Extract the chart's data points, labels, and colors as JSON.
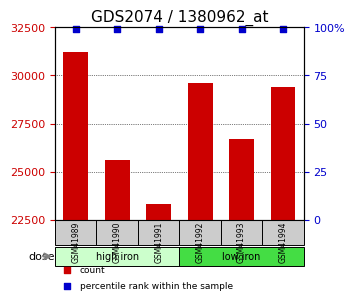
{
  "title": "GDS2074 / 1380962_at",
  "categories": [
    "GSM41989",
    "GSM41990",
    "GSM41991",
    "GSM41992",
    "GSM41993",
    "GSM41994"
  ],
  "bar_values": [
    31200,
    25600,
    23300,
    29600,
    26700,
    29400
  ],
  "percentile_values": [
    99,
    99,
    99,
    99,
    99,
    99
  ],
  "bar_color": "#cc0000",
  "percentile_color": "#0000cc",
  "ylim_left": [
    22500,
    32500
  ],
  "ylim_right": [
    0,
    100
  ],
  "yticks_left": [
    22500,
    25000,
    27500,
    30000,
    32500
  ],
  "yticks_right": [
    0,
    25,
    50,
    75,
    100
  ],
  "ytick_labels_right": [
    "0",
    "25",
    "50",
    "75",
    "100%"
  ],
  "grid_values": [
    25000,
    27500,
    30000
  ],
  "groups": [
    {
      "label": "high iron",
      "indices": [
        0,
        1,
        2
      ],
      "color": "#ccffcc"
    },
    {
      "label": "low iron",
      "indices": [
        3,
        4,
        5
      ],
      "color": "#44dd44"
    }
  ],
  "dose_label": "dose",
  "legend_items": [
    {
      "label": "count",
      "color": "#cc0000",
      "marker": "s"
    },
    {
      "label": "percentile rank within the sample",
      "color": "#0000cc",
      "marker": "s"
    }
  ],
  "xlabel_color": "#cc0000",
  "title_fontsize": 11,
  "tick_label_fontsize": 8,
  "bar_width": 0.6
}
